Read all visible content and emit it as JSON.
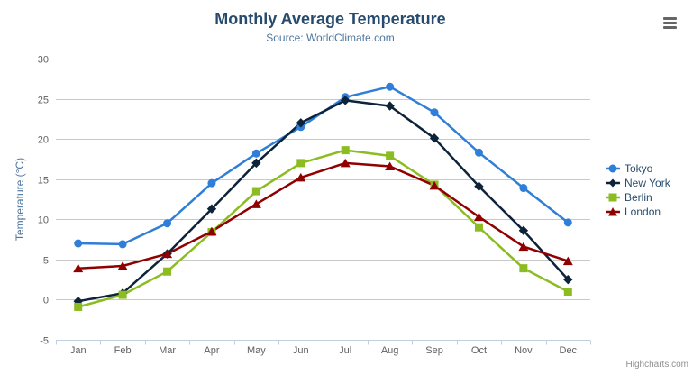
{
  "chart_data": {
    "type": "line",
    "title": "Monthly Average Temperature",
    "subtitle": "Source: WorldClimate.com",
    "xlabel": "",
    "ylabel": "Temperature (°C)",
    "ylim": [
      -5,
      30
    ],
    "ytick_step": 5,
    "grid": "horizontal",
    "legend_position": "right",
    "categories": [
      "Jan",
      "Feb",
      "Mar",
      "Apr",
      "May",
      "Jun",
      "Jul",
      "Aug",
      "Sep",
      "Oct",
      "Nov",
      "Dec"
    ],
    "series": [
      {
        "name": "Tokyo",
        "color": "#2f7ed8",
        "marker": "circle",
        "values": [
          7.0,
          6.9,
          9.5,
          14.5,
          18.2,
          21.5,
          25.2,
          26.5,
          23.3,
          18.3,
          13.9,
          9.6
        ]
      },
      {
        "name": "New York",
        "color": "#0d233a",
        "marker": "diamond",
        "values": [
          -0.2,
          0.8,
          5.7,
          11.3,
          17.0,
          22.0,
          24.8,
          24.1,
          20.1,
          14.1,
          8.6,
          2.5
        ]
      },
      {
        "name": "Berlin",
        "color": "#8bbc21",
        "marker": "square",
        "values": [
          -0.9,
          0.6,
          3.5,
          8.4,
          13.5,
          17.0,
          18.6,
          17.9,
          14.3,
          9.0,
          3.9,
          1.0
        ]
      },
      {
        "name": "London",
        "color": "#910000",
        "marker": "triangle",
        "values": [
          3.9,
          4.2,
          5.7,
          8.5,
          11.9,
          15.2,
          17.0,
          16.6,
          14.2,
          10.3,
          6.6,
          4.8
        ]
      }
    ],
    "style": {
      "grid_color": "#c8c8c8",
      "axis_line_color": "#c0d0e0",
      "tick_color": "#c0d0e0",
      "axis_label_color": "#606060",
      "axis_title_color": "#4d759e"
    }
  },
  "credits": {
    "label": "Highcharts.com"
  },
  "export_menu": {
    "icon": "hamburger-icon"
  }
}
